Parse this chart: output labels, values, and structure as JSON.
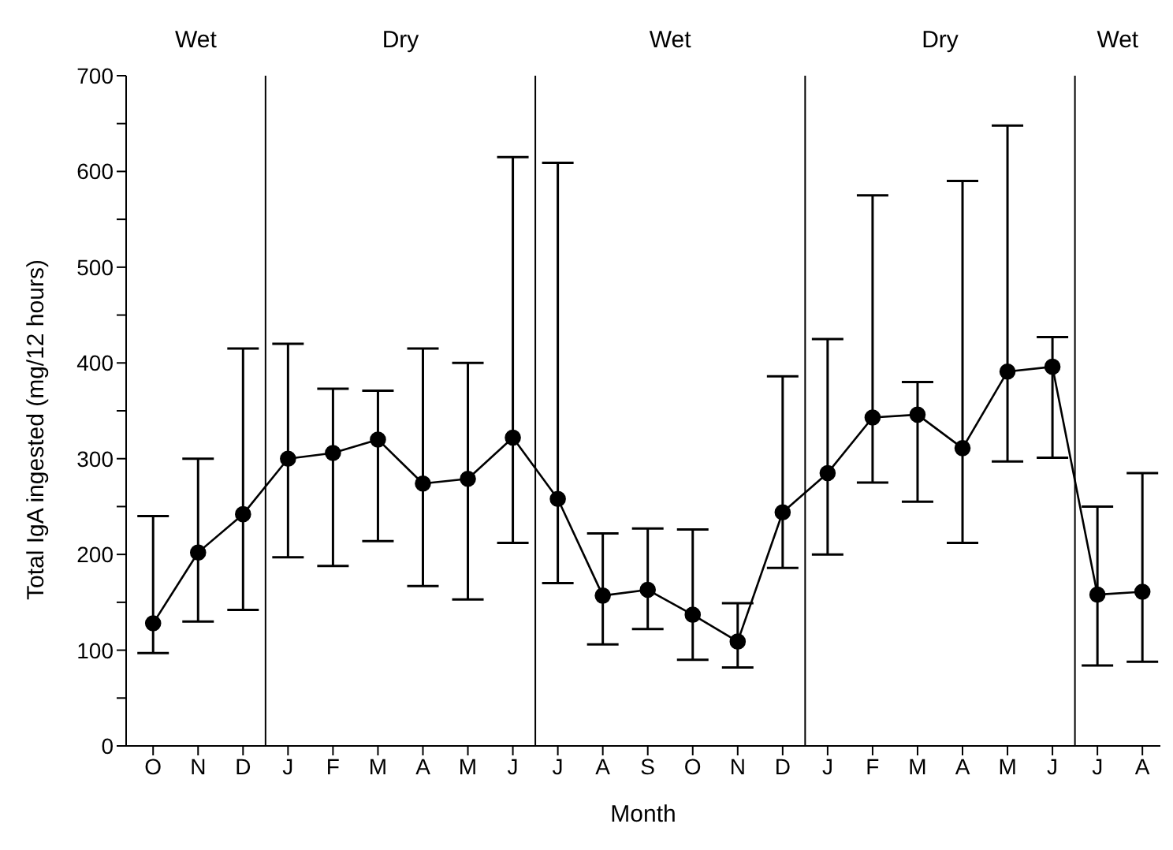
{
  "chart_data": {
    "type": "line",
    "xlabel": "Month",
    "ylabel": "Total IgA ingested (mg/12 hours)",
    "categories": [
      "O",
      "N",
      "D",
      "J",
      "F",
      "M",
      "A",
      "M",
      "J",
      "J",
      "A",
      "S",
      "O",
      "N",
      "D",
      "J",
      "F",
      "M",
      "A",
      "M",
      "J",
      "J",
      "A"
    ],
    "ylim": [
      0,
      700
    ],
    "yticks": [
      0,
      {
        "value": 50,
        "label": null
      },
      100,
      {
        "value": 150,
        "label": null
      },
      200,
      {
        "value": 250,
        "label": null
      },
      300,
      {
        "value": 350,
        "label": null
      },
      400,
      {
        "value": 450,
        "label": null
      },
      500,
      {
        "value": 550,
        "label": null
      },
      600,
      {
        "value": 650,
        "label": null
      },
      700
    ],
    "series": [
      {
        "color": "#000000",
        "values": [
          128,
          202,
          242,
          300,
          306,
          320,
          274,
          279,
          322,
          258,
          157,
          163,
          137,
          109,
          244,
          285,
          343,
          346,
          311,
          391,
          396,
          158,
          161
        ],
        "errors": [
          [
            97,
            240
          ],
          [
            130,
            300
          ],
          [
            142,
            415
          ],
          [
            197,
            420
          ],
          [
            188,
            373
          ],
          [
            214,
            371
          ],
          [
            167,
            415
          ],
          [
            153,
            400
          ],
          [
            212,
            615
          ],
          [
            170,
            609
          ],
          [
            106,
            222
          ],
          [
            122,
            227
          ],
          [
            90,
            226
          ],
          [
            82,
            149
          ],
          [
            186,
            386
          ],
          [
            200,
            425
          ],
          [
            275,
            575
          ],
          [
            255,
            380
          ],
          [
            212,
            590
          ],
          [
            297,
            648
          ],
          [
            301,
            427
          ],
          [
            84,
            250
          ],
          [
            88,
            285
          ]
        ]
      }
    ],
    "annotations": [
      "Wet",
      "Dry",
      "Wet",
      "Dry",
      "Wet"
    ],
    "marker": "circle",
    "line_style": "solid",
    "grid": false,
    "legend": false
  }
}
